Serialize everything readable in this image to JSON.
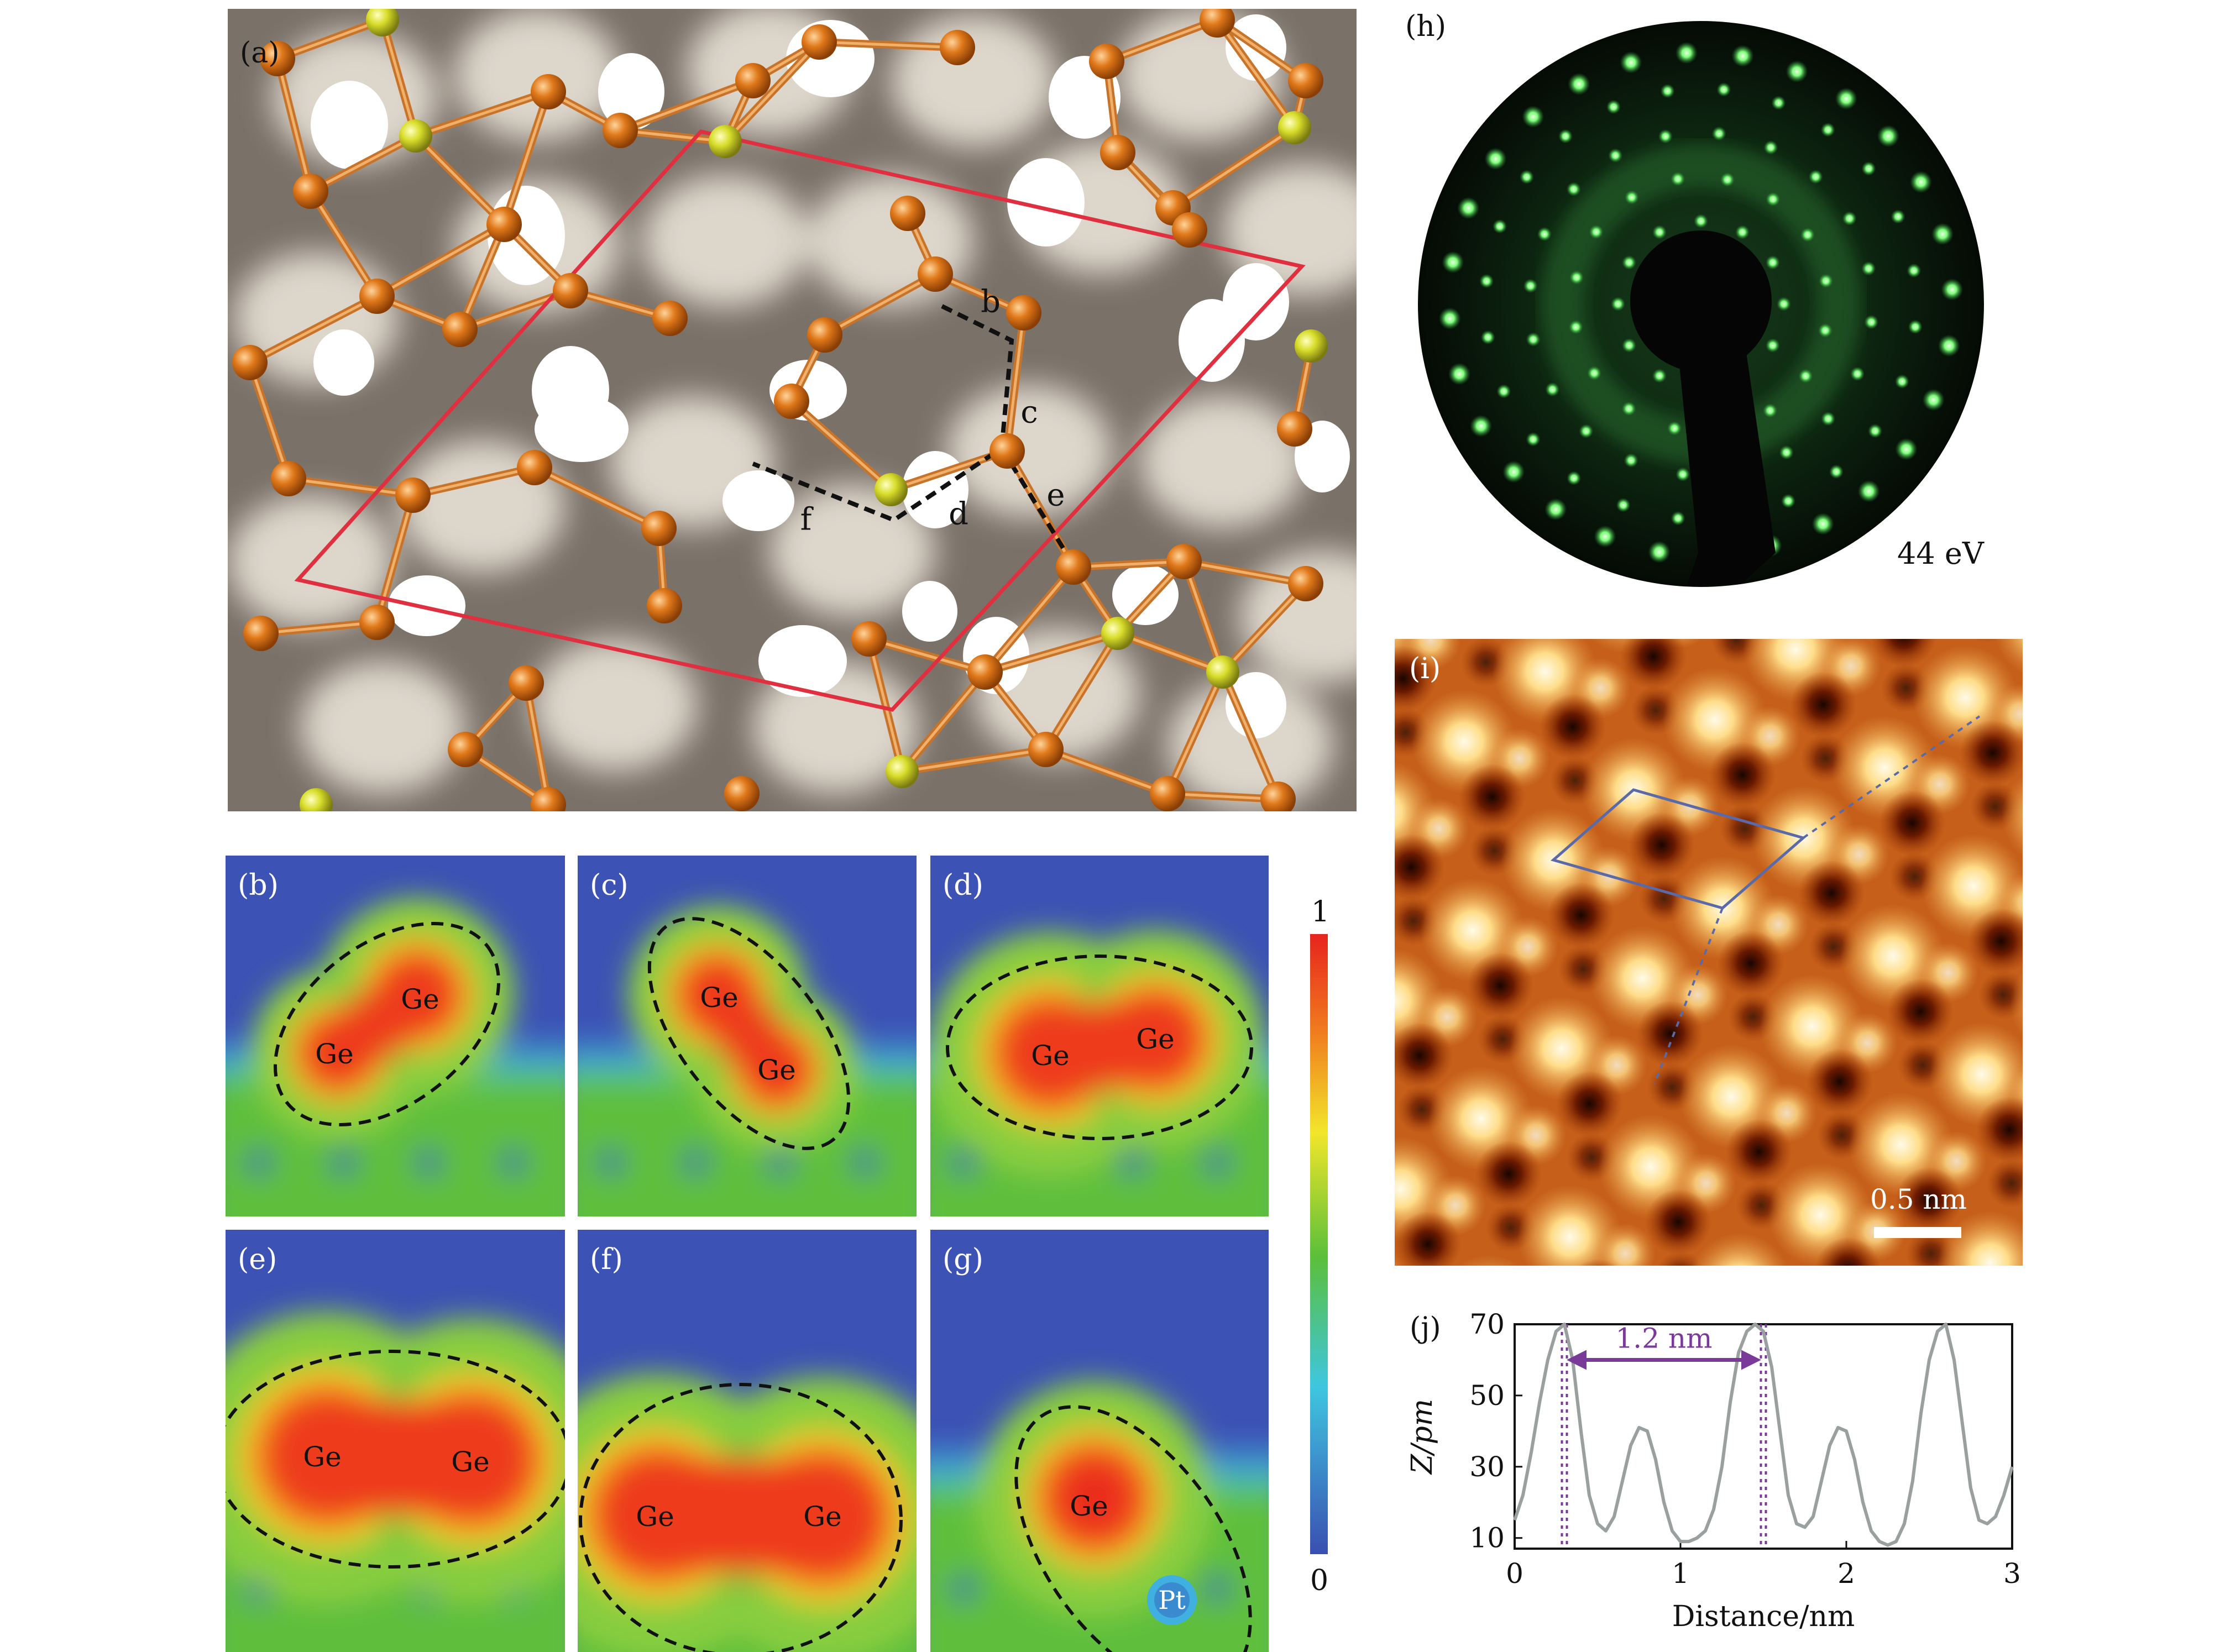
{
  "panel_a": {
    "label": "(a)",
    "bond_labels": [
      "b",
      "c",
      "d",
      "e",
      "f"
    ]
  },
  "panel_h": {
    "label": "(h)",
    "energy": "44 eV"
  },
  "panel_i": {
    "label": "(i)",
    "scalebar": "0.5 nm"
  },
  "maps": [
    {
      "label": "(b)",
      "atoms": [
        "Ge",
        "Ge"
      ]
    },
    {
      "label": "(c)",
      "atoms": [
        "Ge",
        "Ge"
      ]
    },
    {
      "label": "(d)",
      "atoms": [
        "Ge",
        "Ge"
      ]
    },
    {
      "label": "(e)",
      "atoms": [
        "Ge",
        "Ge"
      ]
    },
    {
      "label": "(f)",
      "atoms": [
        "Ge",
        "Ge"
      ]
    },
    {
      "label": "(g)",
      "atoms": [
        "Ge",
        "Pt"
      ]
    }
  ],
  "colorbar": {
    "max": "1",
    "min": "0",
    "colors": [
      "#3a4fb0",
      "#3fc6e0",
      "#5bbf3a",
      "#f2e62a",
      "#f07d1e",
      "#e8231e"
    ]
  },
  "chart_data": {
    "type": "line",
    "label": "(j)",
    "xlabel": "Distance/nm",
    "ylabel": "Z/pm",
    "xlim": [
      0,
      3
    ],
    "ylim": [
      7,
      70
    ],
    "xticks": [
      "0",
      "1",
      "2",
      "3"
    ],
    "yticks": [
      "10",
      "30",
      "50",
      "70"
    ],
    "annotation": "1.2 nm",
    "marker_x": [
      0.3,
      1.5
    ],
    "x": [
      0,
      0.05,
      0.1,
      0.15,
      0.2,
      0.25,
      0.3,
      0.35,
      0.4,
      0.45,
      0.5,
      0.55,
      0.6,
      0.65,
      0.7,
      0.75,
      0.8,
      0.85,
      0.9,
      0.95,
      1.0,
      1.05,
      1.1,
      1.15,
      1.2,
      1.25,
      1.3,
      1.35,
      1.4,
      1.45,
      1.5,
      1.55,
      1.6,
      1.65,
      1.7,
      1.75,
      1.8,
      1.85,
      1.9,
      1.95,
      2.0,
      2.05,
      2.1,
      2.15,
      2.2,
      2.25,
      2.3,
      2.35,
      2.4,
      2.45,
      2.5,
      2.55,
      2.6,
      2.65,
      2.7,
      2.75,
      2.8,
      2.85,
      2.9,
      2.95,
      3.0
    ],
    "y": [
      15,
      22,
      34,
      48,
      60,
      68,
      70,
      60,
      40,
      22,
      14,
      12,
      16,
      26,
      36,
      41,
      40,
      32,
      20,
      12,
      9,
      9,
      10,
      12,
      18,
      30,
      48,
      62,
      68,
      70,
      68,
      58,
      40,
      22,
      14,
      13,
      16,
      26,
      36,
      41,
      40,
      32,
      20,
      12,
      9,
      8,
      9,
      14,
      26,
      45,
      60,
      68,
      70,
      60,
      42,
      24,
      15,
      14,
      16,
      22,
      30
    ]
  }
}
